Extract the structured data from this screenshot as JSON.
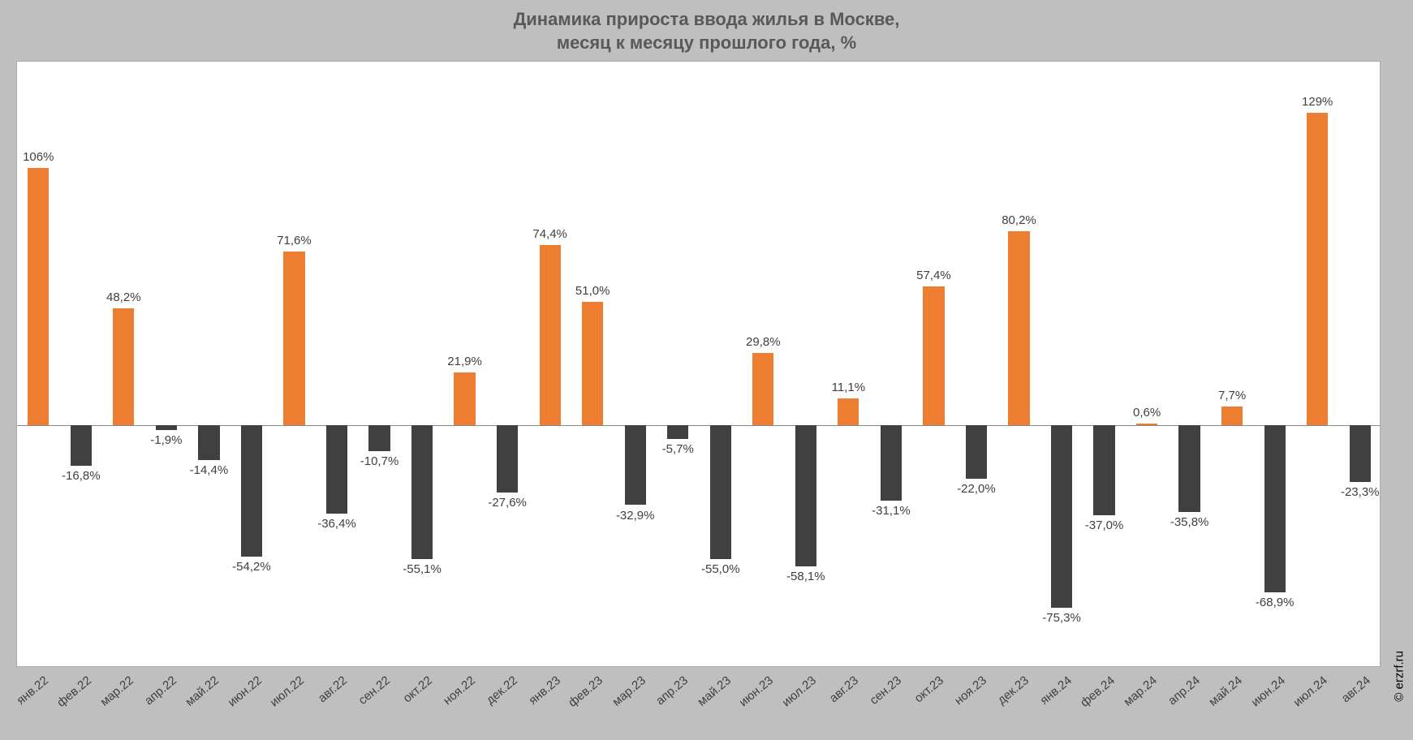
{
  "chart": {
    "type": "bar",
    "title_line1": "Динамика прироста ввода жилья в Москве,",
    "title_line2": "месяц к месяцу прошлого года, %",
    "title_fontsize": 22,
    "title_color": "#595959",
    "background_color": "#bfbfbf",
    "plot_background": "#ffffff",
    "positive_color": "#ed7d31",
    "negative_color": "#404040",
    "label_color": "#404040",
    "axis_label_color": "#404040",
    "label_fontsize": 15,
    "ymin": -100,
    "ymax": 150,
    "bar_width_ratio": 0.5,
    "copyright": "© erzrf.ru",
    "categories": [
      "янв.22",
      "фев.22",
      "мар.22",
      "апр.22",
      "май.22",
      "июн.22",
      "июл.22",
      "авг.22",
      "сен.22",
      "окт.22",
      "ноя.22",
      "дек.22",
      "янв.23",
      "фев.23",
      "мар.23",
      "апр.23",
      "май.23",
      "июн.23",
      "июл.23",
      "авг.23",
      "сен.23",
      "окт.23",
      "ноя.23",
      "дек.23",
      "янв.24",
      "фев.24",
      "мар.24",
      "апр.24",
      "май.24",
      "июн.24",
      "июл.24",
      "авг.24"
    ],
    "values": [
      106,
      -16.8,
      48.2,
      -1.9,
      -14.4,
      -54.2,
      71.6,
      -36.4,
      -10.7,
      -55.1,
      21.9,
      -27.6,
      74.4,
      51.0,
      -32.9,
      -5.7,
      -55.0,
      29.8,
      -58.1,
      11.1,
      -31.1,
      57.4,
      -22.0,
      80.2,
      -75.3,
      -37.0,
      0.6,
      -35.8,
      7.7,
      -68.9,
      129,
      -23.3
    ],
    "value_labels": [
      "106%",
      "-16,8%",
      "48,2%",
      "-1,9%",
      "-14,4%",
      "-54,2%",
      "71,6%",
      "-36,4%",
      "-10,7%",
      "-55,1%",
      "21,9%",
      "-27,6%",
      "74,4%",
      "51,0%",
      "-32,9%",
      "-5,7%",
      "-55,0%",
      "29,8%",
      "-58,1%",
      "11,1%",
      "-31,1%",
      "57,4%",
      "-22,0%",
      "80,2%",
      "-75,3%",
      "-37,0%",
      "0,6%",
      "-35,8%",
      "7,7%",
      "-68,9%",
      "129%",
      "-23,3%"
    ]
  }
}
